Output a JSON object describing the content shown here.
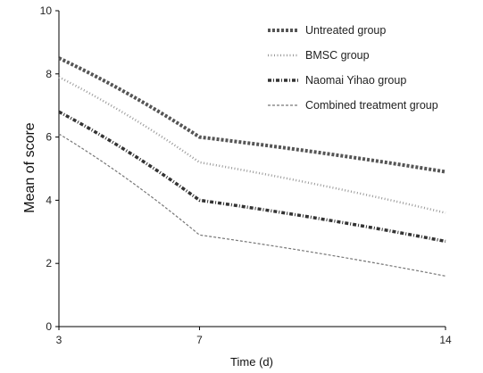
{
  "chart_data": {
    "type": "line",
    "title": "",
    "xlabel": "Time (d)",
    "ylabel": "Mean of score",
    "x": [
      3,
      7,
      14
    ],
    "x_ticks": [
      "3",
      "7",
      "14"
    ],
    "ylim": [
      0,
      10
    ],
    "y_ticks": [
      "0",
      "2",
      "4",
      "6",
      "8",
      "10"
    ],
    "grid": false,
    "legend_position": "top-right",
    "series": [
      {
        "name": "Untreated group",
        "values": [
          8.5,
          6.0,
          4.9
        ],
        "color": "#555555",
        "style": "heavy-dash"
      },
      {
        "name": "BMSC group",
        "values": [
          7.9,
          5.2,
          3.6
        ],
        "color": "#9a9a9a",
        "style": "dotted"
      },
      {
        "name": "Naomai Yihao group",
        "values": [
          6.8,
          4.0,
          2.7
        ],
        "color": "#333333",
        "style": "dash-dot"
      },
      {
        "name": "Combined treatment group",
        "values": [
          6.1,
          2.9,
          1.6
        ],
        "color": "#777777",
        "style": "fine-dash"
      }
    ]
  }
}
